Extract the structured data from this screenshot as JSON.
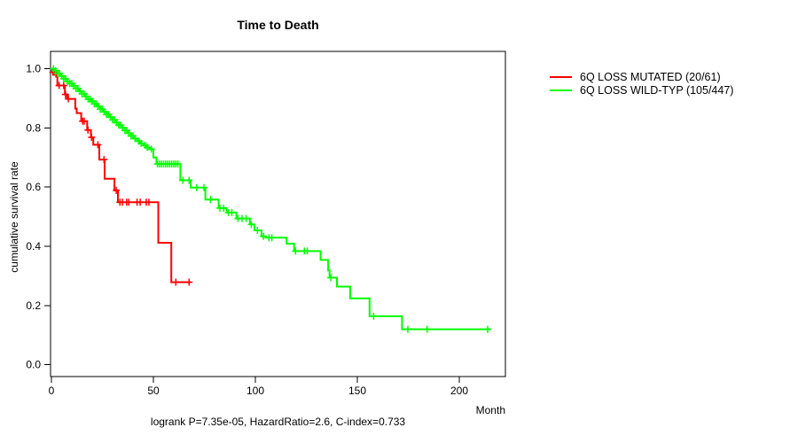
{
  "annotation": "logrank P=7.35e-05, HazardRatio=2.6, C-index=0.733",
  "chart_data": {
    "type": "line",
    "subtype": "kaplan-meier-step",
    "title": "Time to Death",
    "xlabel": "Month",
    "ylabel": "cumulative survival rate",
    "xlim": [
      0,
      222
    ],
    "ylim": [
      0.0,
      1.0
    ],
    "grid": false,
    "legend_position": "right-outside",
    "x_ticks": [
      0,
      50,
      100,
      150,
      200
    ],
    "y_tick_labels": [
      "0.0",
      "0.2",
      "0.4",
      "0.6",
      "0.8",
      "1.0"
    ],
    "series": [
      {
        "name": "6Q LOSS MUTATED (20/61)",
        "color": "#ff0000",
        "steps": [
          [
            0,
            1.0
          ],
          [
            0.4,
            0.988
          ],
          [
            2.3,
            0.973
          ],
          [
            2.9,
            0.943
          ],
          [
            6.6,
            0.913
          ],
          [
            7.7,
            0.898
          ],
          [
            11.7,
            0.865
          ],
          [
            12.4,
            0.85
          ],
          [
            14.6,
            0.823
          ],
          [
            17.5,
            0.793
          ],
          [
            19.4,
            0.768
          ],
          [
            20.5,
            0.743
          ],
          [
            23.5,
            0.693
          ],
          [
            26.1,
            0.628
          ],
          [
            30.9,
            0.589
          ],
          [
            32.6,
            0.549
          ],
          [
            52.4,
            0.412
          ],
          [
            58.8,
            0.279
          ]
        ],
        "end_month": 68.3,
        "censor_months": [
          0.7,
          1.4,
          3.8,
          6.0,
          6.9,
          8.3,
          15.3,
          16.1,
          17.9,
          19.7,
          22.8,
          25.8,
          31.8,
          33.6,
          34.8,
          36.9,
          37.9,
          42.0,
          43.5,
          46.5,
          47.8,
          61.0,
          67.5
        ]
      },
      {
        "name": "6Q LOSS WILD-TYP (105/447)",
        "color": "#00ff00",
        "steps": [
          [
            0,
            1.0
          ],
          [
            1.5,
            0.993
          ],
          [
            3,
            0.984
          ],
          [
            4.5,
            0.975
          ],
          [
            6,
            0.966
          ],
          [
            7.5,
            0.957
          ],
          [
            9,
            0.95
          ],
          [
            10.5,
            0.942
          ],
          [
            12,
            0.933
          ],
          [
            13.5,
            0.924
          ],
          [
            15,
            0.915
          ],
          [
            16.5,
            0.906
          ],
          [
            18,
            0.897
          ],
          [
            19.5,
            0.89
          ],
          [
            21,
            0.881
          ],
          [
            22.5,
            0.872
          ],
          [
            24,
            0.863
          ],
          [
            25.5,
            0.854
          ],
          [
            27,
            0.845
          ],
          [
            28.5,
            0.836
          ],
          [
            30,
            0.827
          ],
          [
            31.5,
            0.818
          ],
          [
            33,
            0.809
          ],
          [
            34.5,
            0.8
          ],
          [
            36,
            0.791
          ],
          [
            37.5,
            0.782
          ],
          [
            39,
            0.773
          ],
          [
            40.5,
            0.764
          ],
          [
            42,
            0.755
          ],
          [
            43.5,
            0.748
          ],
          [
            45,
            0.741
          ],
          [
            46.5,
            0.734
          ],
          [
            48,
            0.728
          ],
          [
            50,
            0.7
          ],
          [
            51.5,
            0.678
          ],
          [
            63.2,
            0.623
          ],
          [
            68.3,
            0.598
          ],
          [
            75.5,
            0.558
          ],
          [
            82,
            0.529
          ],
          [
            86,
            0.514
          ],
          [
            90.7,
            0.494
          ],
          [
            97.3,
            0.474
          ],
          [
            99.5,
            0.454
          ],
          [
            103,
            0.434
          ],
          [
            105,
            0.429
          ],
          [
            115.3,
            0.409
          ],
          [
            119,
            0.384
          ],
          [
            132,
            0.354
          ],
          [
            135.7,
            0.319
          ],
          [
            136.4,
            0.294
          ],
          [
            140,
            0.264
          ],
          [
            146.5,
            0.224
          ],
          [
            156,
            0.164
          ],
          [
            171.9,
            0.12
          ]
        ],
        "end_month": 215,
        "censor_months": [
          1,
          2,
          3,
          4,
          5,
          6,
          7,
          8,
          9,
          10,
          11,
          12,
          13,
          14,
          15,
          16,
          17,
          18,
          19,
          20,
          21,
          22,
          23,
          24,
          25,
          26,
          27,
          28,
          29,
          30,
          31,
          32,
          33,
          34,
          35,
          36,
          37,
          38,
          39,
          40,
          41,
          43,
          44,
          46,
          47,
          49,
          52,
          53,
          54,
          55,
          56,
          57,
          58,
          59,
          60,
          61,
          62,
          64.5,
          67.5,
          71.2,
          74.8,
          78,
          82.6,
          84.5,
          86.8,
          88.5,
          91.5,
          93.5,
          95.5,
          98,
          101,
          104,
          106.7,
          108.1,
          119.7,
          124,
          125.5,
          137,
          158,
          174.8,
          184.2,
          213.9
        ]
      }
    ]
  }
}
